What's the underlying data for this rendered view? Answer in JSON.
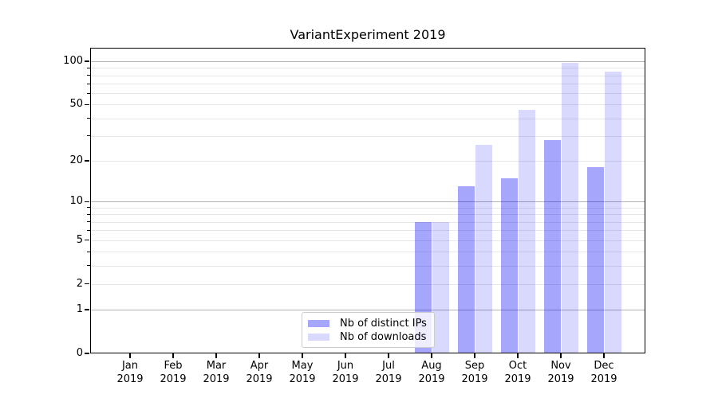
{
  "title": "VariantExperiment 2019",
  "chart_data": {
    "type": "bar",
    "title": "VariantExperiment 2019",
    "categories": [
      "Jan",
      "Feb",
      "Mar",
      "Apr",
      "May",
      "Jun",
      "Jul",
      "Aug",
      "Sep",
      "Oct",
      "Nov",
      "Dec"
    ],
    "year": "2019",
    "series": [
      {
        "name": "Nb of distinct IPs",
        "slug": "distinct-ips",
        "color": "rgba(0,0,245,0.35)",
        "values": [
          0,
          0,
          0,
          0,
          0,
          0,
          0,
          7,
          13,
          15,
          28,
          18
        ]
      },
      {
        "name": "Nb of downloads",
        "slug": "downloads",
        "color": "rgba(0,0,245,0.15)",
        "values": [
          0,
          0,
          0,
          0,
          0,
          0,
          0,
          7,
          26,
          46,
          97,
          85
        ]
      }
    ],
    "xlabel": "",
    "ylabel": "",
    "yscale": "log1p",
    "ylim": [
      0,
      124
    ],
    "yticks": [
      0,
      1,
      2,
      5,
      10,
      20,
      50,
      100
    ],
    "major_gridlines": [
      1,
      10,
      100
    ],
    "minor_gridlines": [
      2,
      3,
      4,
      5,
      6,
      7,
      8,
      9,
      20,
      30,
      40,
      50,
      60,
      70,
      80,
      90
    ],
    "grid": true,
    "legend_position": "lower center",
    "colors": {
      "major_grid": "#b2b2b2",
      "minor_grid": "#e7e7e7",
      "spine": "#000000",
      "background": "#ffffff"
    }
  }
}
